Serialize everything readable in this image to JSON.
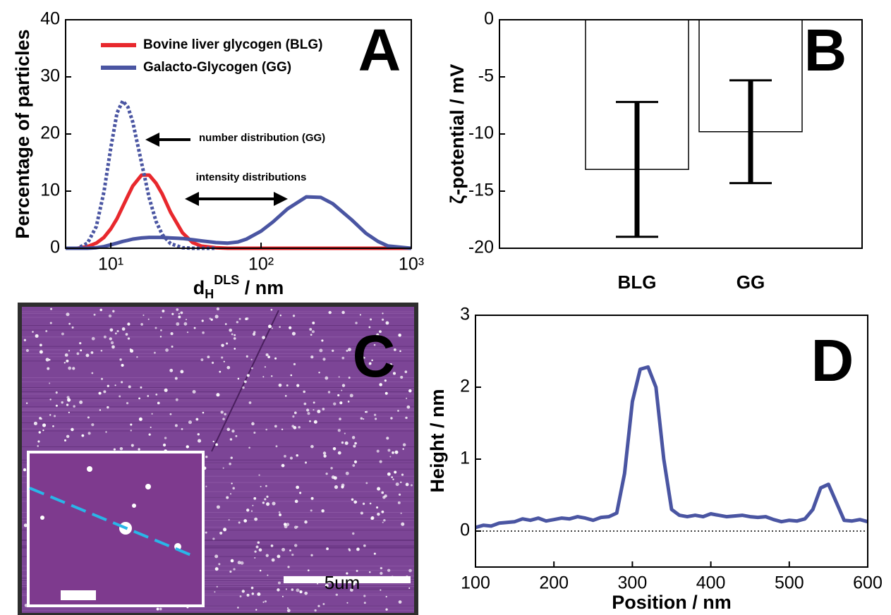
{
  "chart_data": [
    {
      "type": "line",
      "label": "A",
      "xscale": "log",
      "xlabel": {
        "main": "d",
        "sub": "H",
        "sup": "DLS",
        "rest": " / nm"
      },
      "ylabel": "Percentage of particles",
      "x": [
        5,
        6,
        7,
        8,
        9,
        10,
        11,
        12,
        13,
        14,
        16,
        18,
        20,
        22,
        25,
        30,
        35,
        40,
        50,
        60,
        70,
        80,
        100,
        120,
        150,
        200,
        250,
        300,
        400,
        500,
        600,
        700,
        1000
      ],
      "series": [
        {
          "name": "Bovine liver glycogen (BLG)",
          "color": "#e8282d",
          "dash": "solid",
          "values": [
            0,
            0,
            0.3,
            0.9,
            1.9,
            3.4,
            5.2,
            7.3,
            9.2,
            10.9,
            12.8,
            12.8,
            11.4,
            9.5,
            6.3,
            2.7,
            1.0,
            0.4,
            0.1,
            0,
            0,
            0,
            0,
            0,
            0,
            0,
            0,
            0,
            0,
            0,
            0,
            0,
            0
          ]
        },
        {
          "name": "Galacto-Glycogen (GG)",
          "color": "#4a55a2",
          "dash": "solid",
          "values": [
            0,
            0,
            0,
            0.1,
            0.3,
            0.6,
            0.9,
            1.2,
            1.4,
            1.6,
            1.8,
            1.9,
            1.9,
            1.9,
            1.8,
            1.7,
            1.5,
            1.3,
            1.0,
            0.9,
            1.1,
            1.6,
            3.0,
            4.6,
            6.9,
            9.0,
            8.9,
            7.8,
            5.0,
            2.6,
            1.2,
            0.4,
            0
          ]
        },
        {
          "color": "#4a55a2",
          "dash": "dotted",
          "values": [
            0,
            0,
            0.9,
            3.8,
            9.9,
            17.6,
            23.7,
            25.8,
            24.7,
            22.1,
            15.0,
            8.8,
            4.7,
            2.4,
            0.8,
            0.1,
            0,
            0,
            0,
            null,
            null,
            null,
            null,
            null,
            null,
            null,
            null,
            null,
            null,
            null,
            null,
            null,
            null
          ]
        }
      ],
      "annotations": [
        "number distribution (GG)",
        "intensity distributions"
      ],
      "xlim": [
        5,
        1000
      ],
      "xticks": [
        {
          "value": 10,
          "label": "10¹"
        },
        {
          "value": 100,
          "label": "10²"
        },
        {
          "value": 1000,
          "label": "10³"
        }
      ],
      "ylim": [
        0,
        40
      ],
      "yticks": [
        0,
        10,
        20,
        30,
        40
      ]
    },
    {
      "type": "bar",
      "label": "B",
      "ylabel": "ζ-potential / mV",
      "categories": [
        "BLG",
        "GG"
      ],
      "values": [
        -13.1,
        -9.8
      ],
      "errors": [
        5.9,
        4.5
      ],
      "color": "#ffffff",
      "ylim": [
        -20,
        0
      ],
      "yticks": [
        0,
        -5,
        -10,
        -15,
        -20
      ]
    },
    {
      "type": "image",
      "label": "C",
      "scale_label": "5um"
    },
    {
      "type": "line",
      "label": "D",
      "xlabel": "Position / nm",
      "ylabel": "Height / nm",
      "zero_line": true,
      "x": [
        100,
        110,
        120,
        130,
        140,
        150,
        160,
        170,
        180,
        190,
        200,
        210,
        220,
        230,
        240,
        250,
        260,
        270,
        280,
        290,
        300,
        310,
        320,
        330,
        340,
        350,
        360,
        370,
        380,
        390,
        400,
        410,
        420,
        430,
        440,
        450,
        460,
        470,
        480,
        490,
        500,
        510,
        520,
        530,
        540,
        550,
        560,
        570,
        580,
        590,
        600
      ],
      "series": [
        {
          "color": "#4a55a2",
          "dash": "solid",
          "values": [
            0.05,
            0.08,
            0.07,
            0.11,
            0.12,
            0.13,
            0.17,
            0.15,
            0.18,
            0.14,
            0.16,
            0.18,
            0.17,
            0.2,
            0.18,
            0.15,
            0.19,
            0.2,
            0.25,
            0.8,
            1.8,
            2.25,
            2.28,
            2.0,
            1.0,
            0.3,
            0.22,
            0.2,
            0.22,
            0.2,
            0.24,
            0.22,
            0.2,
            0.21,
            0.22,
            0.2,
            0.19,
            0.2,
            0.16,
            0.13,
            0.15,
            0.14,
            0.17,
            0.3,
            0.6,
            0.65,
            0.4,
            0.15,
            0.14,
            0.16,
            0.13
          ]
        }
      ],
      "xlim": [
        100,
        600
      ],
      "xticks": [
        100,
        200,
        300,
        400,
        500,
        600
      ],
      "ylim": [
        -0.5,
        3
      ],
      "yticks": [
        0,
        1,
        2,
        3
      ]
    }
  ]
}
